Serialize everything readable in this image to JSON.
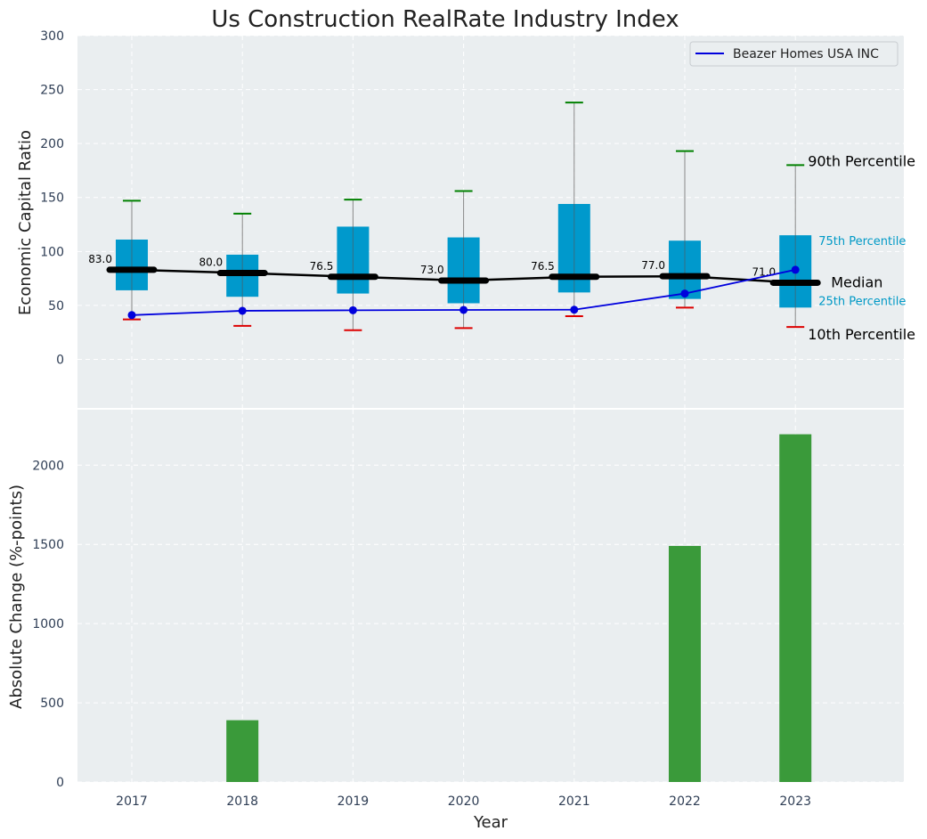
{
  "chart_data": [
    {
      "type": "box",
      "title": "Us Construction RealRate Industry Index",
      "ylabel": "Economic Capital Ratio",
      "categories": [
        "2017",
        "2018",
        "2019",
        "2020",
        "2021",
        "2022",
        "2023"
      ],
      "ylim": [
        -45,
        300
      ],
      "yticks": [
        0,
        50,
        100,
        150,
        200,
        250,
        300
      ],
      "grid": true,
      "legend_position": "top-right",
      "percentiles": {
        "p10": [
          37,
          31,
          27,
          29,
          40,
          48,
          30
        ],
        "p25": [
          64,
          58,
          61,
          52,
          62,
          56,
          48
        ],
        "median": [
          83.0,
          80.0,
          76.5,
          73.0,
          76.5,
          77.0,
          71.0
        ],
        "p75": [
          111,
          97,
          123,
          113,
          144,
          110,
          115
        ],
        "p90": [
          147,
          135,
          148,
          156,
          238,
          193,
          180
        ]
      },
      "median_labels": [
        "83.0",
        "80.0",
        "76.5",
        "73.0",
        "76.5",
        "77.0",
        "71.0"
      ],
      "series": [
        {
          "name": "Beazer Homes USA INC",
          "values": [
            41,
            45,
            45.5,
            45.8,
            46,
            61,
            83
          ],
          "color": "#0000dd"
        }
      ],
      "annotations": {
        "p90": "90th Percentile",
        "p75": "75th Percentile",
        "median": "Median",
        "p25": "25th Percentile",
        "p10": "10th Percentile"
      },
      "colors": {
        "box": "#0099cc",
        "p90_cap": "#008000",
        "p10_cap": "#dd0000",
        "median": "#000000",
        "background": "#eaeef0"
      }
    },
    {
      "type": "bar",
      "ylabel": "Absolute Change (%-points)",
      "xlabel": "Year",
      "categories": [
        "2017",
        "2018",
        "2019",
        "2020",
        "2021",
        "2022",
        "2023"
      ],
      "values": [
        0,
        390,
        0,
        0,
        0,
        1490,
        2195
      ],
      "ylim": [
        0,
        2350
      ],
      "yticks": [
        0,
        500,
        1000,
        1500,
        2000
      ],
      "grid": true,
      "colors": {
        "bar": "#3a9a3a"
      }
    }
  ]
}
